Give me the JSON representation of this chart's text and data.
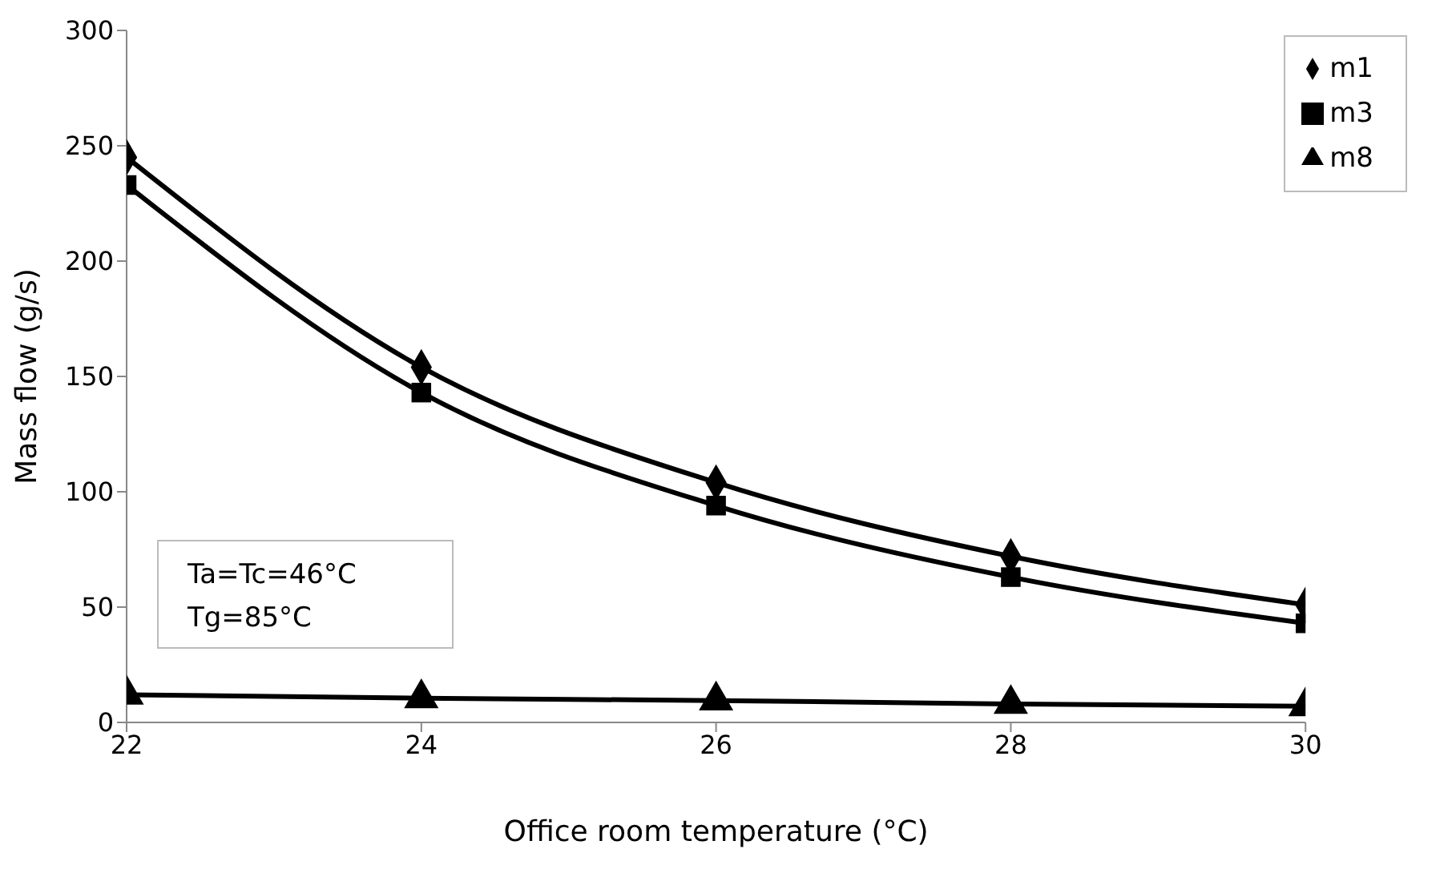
{
  "chart_data": {
    "type": "line",
    "xlabel": "Office room temperature (°C)",
    "ylabel": "Mass flow  (g/s)",
    "x": [
      22,
      24,
      26,
      28,
      30
    ],
    "series": [
      {
        "name": "m1",
        "color": "#000000",
        "marker": "diamond",
        "values": [
          245,
          154,
          104,
          72,
          51
        ]
      },
      {
        "name": "m3",
        "color": "#000000",
        "marker": "square",
        "values": [
          233,
          143,
          94,
          63,
          43
        ]
      },
      {
        "name": "m8",
        "color": "#000000",
        "marker": "triangle",
        "values": [
          12,
          10.5,
          9.5,
          8,
          7
        ]
      }
    ],
    "xlim": [
      22,
      30
    ],
    "xticks": [
      22,
      24,
      26,
      28,
      30
    ],
    "ylim": [
      0,
      300
    ],
    "yticks": [
      0,
      50,
      100,
      150,
      200,
      250,
      300
    ],
    "grid": false,
    "legend": "top right",
    "line_style": "solid",
    "annotations": [
      "Ta=Tc=46°C",
      "Tg=85°C"
    ]
  }
}
